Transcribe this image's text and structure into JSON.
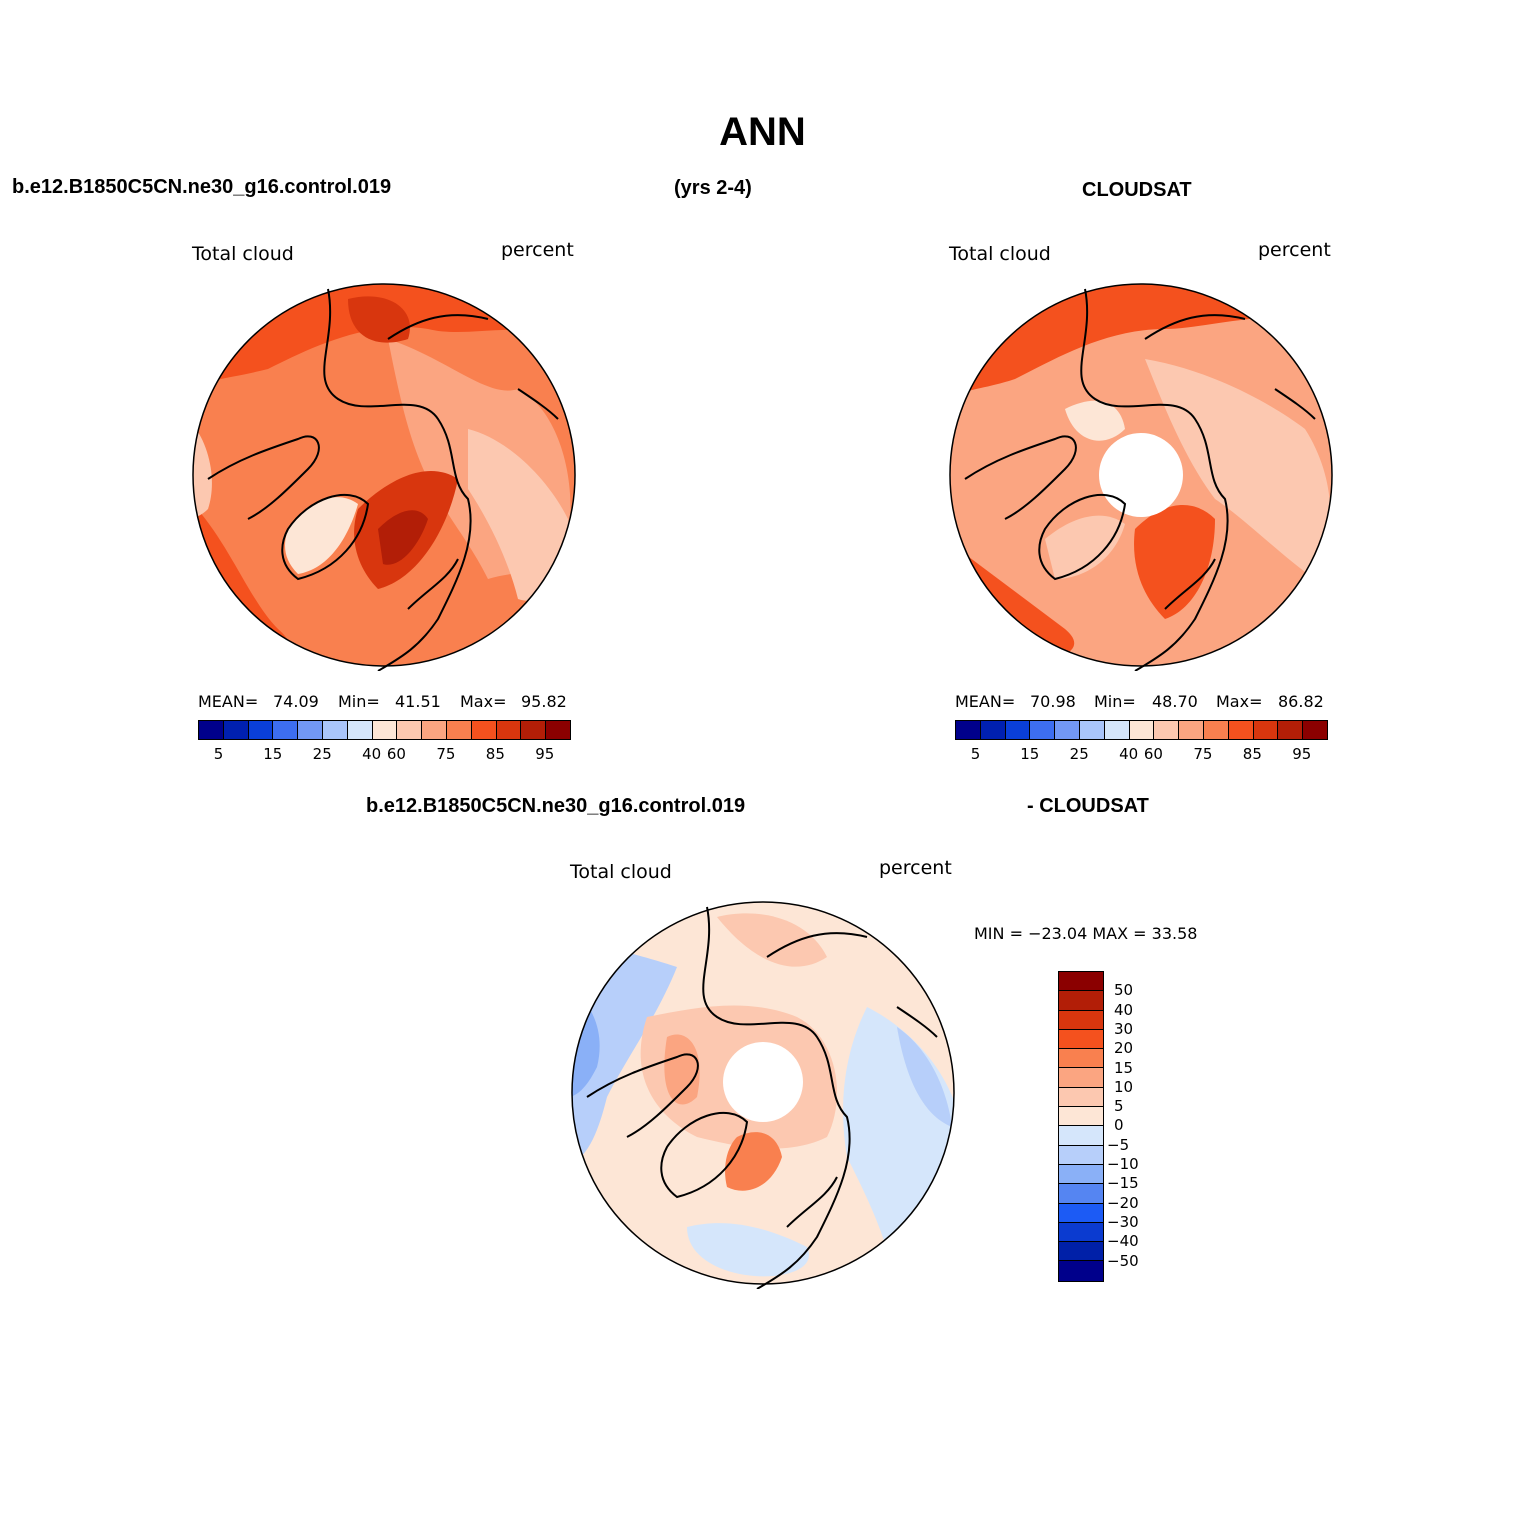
{
  "title": "ANN",
  "left_header": "b.e12.B1850C5CN.ne30_g16.control.019",
  "center_header": "(yrs 2-4)",
  "right_header": "CLOUDSAT",
  "panels": {
    "model": {
      "variable": "Total cloud",
      "units": "percent",
      "mean_label": "MEAN=",
      "mean": "74.09",
      "min_label": "Min=",
      "min": "41.51",
      "max_label": "Max=",
      "max": "95.82"
    },
    "obs": {
      "variable": "Total cloud",
      "units": "percent",
      "mean_label": "MEAN=",
      "mean": "70.98",
      "min_label": "Min=",
      "min": "48.70",
      "max_label": "Max=",
      "max": "86.82"
    },
    "diff": {
      "title_left": "b.e12.B1850C5CN.ne30_g16.control.019",
      "title_right": "- CLOUDSAT",
      "variable": "Total cloud",
      "units": "percent",
      "minmax": "MIN = −23.04 MAX =   33.58"
    }
  },
  "colorbar_abs": {
    "colors": [
      "#00008b",
      "#0020b0",
      "#0a3fd8",
      "#3d6ef0",
      "#7298f5",
      "#a9c5fb",
      "#d5e6fb",
      "#fde6d6",
      "#fcc8b0",
      "#fba581",
      "#f9804f",
      "#f4511e",
      "#d8360e",
      "#b21e07",
      "#8b0000"
    ],
    "ticks": [
      "5",
      "15",
      "25",
      "40",
      "60",
      "75",
      "85",
      "95"
    ]
  },
  "colorbar_diff": {
    "colors": [
      "#8b0000",
      "#b21e07",
      "#d8360e",
      "#f4511e",
      "#f9804f",
      "#fba581",
      "#fcc8b0",
      "#fde6d6",
      "#d5e6fb",
      "#b7cffa",
      "#8ab0f7",
      "#5585f2",
      "#1c5bf5",
      "#0b3bd0",
      "#0020a8",
      "#00008b"
    ],
    "ticks": [
      "50",
      "40",
      "30",
      "20",
      "15",
      "10",
      "5",
      "0",
      "−5",
      "−10",
      "−15",
      "−20",
      "−30",
      "−40",
      "−50"
    ]
  },
  "map_colors": {
    "model": {
      "base": "#f9804f",
      "b1": "#fba581",
      "b2": "#fcc8b0",
      "b3": "#f4511e",
      "b4": "#d8360e",
      "b5": "#b21e07",
      "b6": "#fde6d6"
    },
    "obs": {
      "base": "#fba581",
      "b1": "#fcc8b0",
      "b2": "#f9804f",
      "b3": "#f4511e",
      "b4": "#fde6d6",
      "b5": "#ffffff"
    },
    "diff": {
      "base": "#fde6d6",
      "b1": "#d5e6fb",
      "b2": "#b7cffa",
      "b3": "#fcc8b0",
      "b4": "#fba581",
      "b5": "#f9804f",
      "b6": "#8ab0f7",
      "b7": "#ffffff"
    }
  }
}
